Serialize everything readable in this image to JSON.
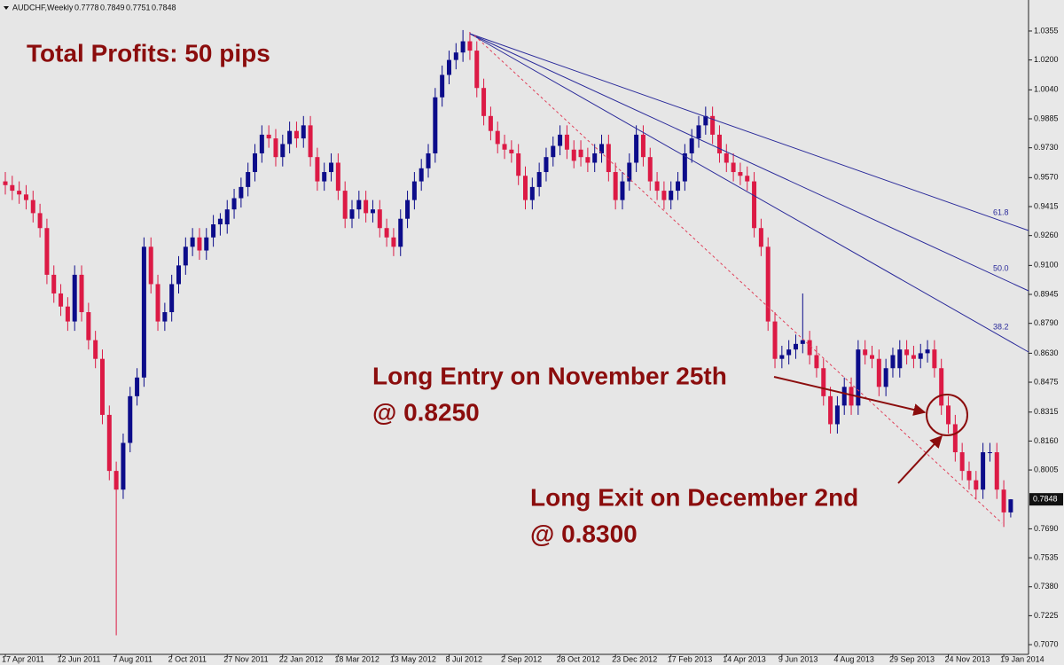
{
  "chart_data": {
    "type": "candlestick",
    "symbol": "AUDCHF,Weekly",
    "annotations": [
      "Total Profits: 50 pips",
      "Long Entry on November 25th",
      "@ 0.8250",
      "Long Exit on December 2nd",
      "@ 0.8300"
    ],
    "fan_levels": [
      61.8,
      {
        "value": 50,
        "label": "50.0"
      },
      38.2
    ],
    "up_color": "#0c0c8a",
    "down_color": "#dc1a45",
    "ylim": [
      0.7018,
      1.0521
    ],
    "yticks": [
      1.0355,
      {
        "value": 1.02,
        "label": "1.0200"
      },
      {
        "value": 1.004,
        "label": "1.0040"
      },
      0.9885,
      {
        "value": 0.973,
        "label": "0.9730"
      },
      {
        "value": 0.957,
        "label": "0.9570"
      },
      0.9415,
      {
        "value": 0.926,
        "label": "0.9260"
      },
      {
        "value": 0.91,
        "label": "0.9100"
      },
      0.8945,
      {
        "value": 0.879,
        "label": "0.8790"
      },
      {
        "value": 0.863,
        "label": "0.8630"
      },
      0.8475,
      0.8315,
      {
        "value": 0.816,
        "label": "0.8160"
      },
      0.8005,
      {
        "value": 0.769,
        "label": "0.7690"
      },
      0.7535,
      {
        "value": 0.738,
        "label": "0.7380"
      },
      0.7225,
      {
        "value": 0.707,
        "label": "0.7070"
      }
    ],
    "categories": [
      "17 Apr 2011",
      null,
      null,
      null,
      null,
      null,
      null,
      null,
      "12 Jun 2011",
      null,
      null,
      null,
      null,
      null,
      null,
      null,
      "7 Aug 2011",
      null,
      null,
      null,
      null,
      null,
      null,
      null,
      "2 Oct 2011",
      null,
      null,
      null,
      null,
      null,
      null,
      null,
      "27 Nov 2011",
      null,
      null,
      null,
      null,
      null,
      null,
      null,
      "22 Jan 2012",
      null,
      null,
      null,
      null,
      null,
      null,
      null,
      "18 Mar 2012",
      null,
      null,
      null,
      null,
      null,
      null,
      null,
      "13 May 2012",
      null,
      null,
      null,
      null,
      null,
      null,
      null,
      "8 Jul 2012",
      null,
      null,
      null,
      null,
      null,
      null,
      null,
      "2 Sep 2012",
      null,
      null,
      null,
      null,
      null,
      null,
      null,
      "28 Oct 2012",
      null,
      null,
      null,
      null,
      null,
      null,
      null,
      "23 Dec 2012",
      null,
      null,
      null,
      null,
      null,
      null,
      null,
      "17 Feb 2013",
      null,
      null,
      null,
      null,
      null,
      null,
      null,
      "14 Apr 2013",
      null,
      null,
      null,
      null,
      null,
      null,
      null,
      "9 Jun 2013",
      null,
      null,
      null,
      null,
      null,
      null,
      null,
      "4 Aug 2013",
      null,
      null,
      null,
      null,
      null,
      null,
      null,
      "29 Sep 2013",
      null,
      null,
      null,
      null,
      null,
      null,
      null,
      "24 Nov 2013",
      null,
      null,
      null,
      null,
      null,
      null,
      null,
      "19 Jan 2014",
      null
    ],
    "open": [
      0.955,
      0.953,
      0.95,
      0.948,
      0.945,
      0.938,
      0.93,
      0.905,
      0.895,
      0.888,
      0.88,
      0.905,
      0.885,
      0.87,
      0.86,
      0.83,
      0.8,
      0.79,
      0.815,
      0.84,
      0.85,
      0.92,
      0.9,
      0.88,
      0.885,
      0.9,
      0.91,
      0.92,
      0.925,
      0.918,
      0.925,
      0.932,
      0.932,
      0.94,
      0.946,
      0.952,
      0.96,
      0.97,
      0.98,
      0.978,
      0.968,
      0.975,
      0.982,
      0.978,
      0.985,
      0.968,
      0.955,
      0.96,
      0.965,
      0.95,
      0.935,
      0.94,
      0.945,
      0.938,
      0.94,
      0.93,
      0.925,
      0.92,
      0.935,
      0.945,
      0.955,
      0.962,
      0.97,
      1.0,
      1.012,
      1.02,
      1.024,
      1.03,
      1.025,
      1.005,
      0.99,
      0.982,
      0.975,
      0.972,
      0.97,
      0.958,
      0.945,
      0.952,
      0.96,
      0.968,
      0.974,
      0.98,
      0.972,
      0.972,
      0.968,
      0.965,
      0.97,
      0.975,
      0.96,
      0.945,
      0.955,
      0.965,
      0.98,
      0.968,
      0.955,
      0.95,
      0.945,
      0.95,
      0.955,
      0.97,
      0.978,
      0.985,
      0.99,
      0.98,
      0.97,
      0.965,
      0.96,
      0.958,
      0.955,
      0.93,
      0.92,
      0.88,
      0.86,
      0.862,
      0.865,
      0.868,
      0.87,
      0.862,
      0.855,
      0.84,
      0.825,
      0.835,
      0.845,
      0.835,
      0.865,
      0.862,
      0.86,
      0.845,
      0.855,
      0.855,
      0.865,
      0.862,
      0.86,
      0.863,
      0.865,
      0.855,
      0.835,
      0.825,
      0.81,
      0.8,
      0.795,
      0.79,
      0.81,
      0.81,
      0.79,
      0.7778
    ],
    "high": [
      0.96,
      0.958,
      0.955,
      0.953,
      0.95,
      0.943,
      0.935,
      0.91,
      0.9,
      0.893,
      0.91,
      0.91,
      0.89,
      0.875,
      0.865,
      0.835,
      0.805,
      0.82,
      0.845,
      0.855,
      0.925,
      0.925,
      0.905,
      0.89,
      0.905,
      0.915,
      0.925,
      0.93,
      0.93,
      0.93,
      0.937,
      0.938,
      0.945,
      0.951,
      0.957,
      0.965,
      0.975,
      0.985,
      0.985,
      0.983,
      0.98,
      0.987,
      0.987,
      0.99,
      0.99,
      0.973,
      0.965,
      0.97,
      0.97,
      0.955,
      0.945,
      0.95,
      0.95,
      0.945,
      0.945,
      0.935,
      0.93,
      0.94,
      0.95,
      0.96,
      0.967,
      0.975,
      1.005,
      1.017,
      1.025,
      1.029,
      1.036,
      1.035,
      1.03,
      1.01,
      0.995,
      0.987,
      0.98,
      0.977,
      0.975,
      0.963,
      0.957,
      0.965,
      0.973,
      0.979,
      0.985,
      0.985,
      0.977,
      0.977,
      0.973,
      0.975,
      0.98,
      0.98,
      0.965,
      0.96,
      0.97,
      0.985,
      0.985,
      0.973,
      0.96,
      0.955,
      0.955,
      0.96,
      0.975,
      0.983,
      0.99,
      0.995,
      0.995,
      0.985,
      0.975,
      0.97,
      0.965,
      0.963,
      0.96,
      0.935,
      0.925,
      0.885,
      0.867,
      0.87,
      0.873,
      0.895,
      0.875,
      0.867,
      0.86,
      0.845,
      0.84,
      0.85,
      0.85,
      0.87,
      0.87,
      0.867,
      0.865,
      0.86,
      0.866,
      0.87,
      0.87,
      0.867,
      0.868,
      0.87,
      0.87,
      0.86,
      0.84,
      0.83,
      0.815,
      0.805,
      0.8,
      0.815,
      0.815,
      0.815,
      0.795,
      0.7849
    ],
    "low": [
      0.948,
      0.945,
      0.943,
      0.94,
      0.933,
      0.925,
      0.9,
      0.89,
      0.883,
      0.875,
      0.875,
      0.88,
      0.865,
      0.855,
      0.825,
      0.795,
      0.712,
      0.785,
      0.81,
      0.835,
      0.845,
      0.895,
      0.875,
      0.875,
      0.88,
      0.895,
      0.905,
      0.915,
      0.913,
      0.913,
      0.92,
      0.926,
      0.927,
      0.935,
      0.941,
      0.947,
      0.955,
      0.965,
      0.973,
      0.963,
      0.963,
      0.97,
      0.973,
      0.973,
      0.963,
      0.95,
      0.95,
      0.955,
      0.945,
      0.93,
      0.93,
      0.935,
      0.933,
      0.933,
      0.925,
      0.92,
      0.915,
      0.915,
      0.93,
      0.94,
      0.95,
      0.957,
      0.965,
      0.995,
      1.007,
      1.015,
      1.019,
      1.02,
      1.0,
      0.985,
      0.977,
      0.97,
      0.967,
      0.965,
      0.953,
      0.94,
      0.94,
      0.947,
      0.955,
      0.963,
      0.969,
      0.967,
      0.962,
      0.963,
      0.96,
      0.96,
      0.965,
      0.955,
      0.94,
      0.94,
      0.95,
      0.96,
      0.963,
      0.95,
      0.945,
      0.94,
      0.94,
      0.945,
      0.95,
      0.965,
      0.973,
      0.98,
      0.975,
      0.965,
      0.96,
      0.955,
      0.953,
      0.95,
      0.925,
      0.915,
      0.875,
      0.855,
      0.855,
      0.857,
      0.86,
      0.863,
      0.857,
      0.85,
      0.835,
      0.82,
      0.82,
      0.83,
      0.83,
      0.83,
      0.857,
      0.855,
      0.84,
      0.84,
      0.85,
      0.85,
      0.857,
      0.855,
      0.855,
      0.858,
      0.85,
      0.83,
      0.82,
      0.805,
      0.795,
      0.79,
      0.785,
      0.785,
      0.805,
      0.785,
      0.77,
      0.7751
    ],
    "close": [
      0.953,
      0.95,
      0.948,
      0.945,
      0.938,
      0.93,
      0.905,
      0.895,
      0.888,
      0.88,
      0.905,
      0.885,
      0.87,
      0.86,
      0.83,
      0.8,
      0.79,
      0.815,
      0.84,
      0.85,
      0.92,
      0.9,
      0.88,
      0.885,
      0.9,
      0.91,
      0.92,
      0.925,
      0.918,
      0.925,
      0.932,
      0.935,
      0.94,
      0.946,
      0.952,
      0.96,
      0.97,
      0.98,
      0.978,
      0.968,
      0.975,
      0.982,
      0.978,
      0.985,
      0.968,
      0.955,
      0.96,
      0.965,
      0.95,
      0.935,
      0.94,
      0.945,
      0.938,
      0.94,
      0.93,
      0.925,
      0.92,
      0.935,
      0.945,
      0.955,
      0.962,
      0.97,
      1.0,
      1.012,
      1.02,
      1.024,
      1.03,
      1.025,
      1.005,
      0.99,
      0.982,
      0.975,
      0.972,
      0.97,
      0.958,
      0.945,
      0.952,
      0.96,
      0.968,
      0.974,
      0.98,
      0.972,
      0.966,
      0.968,
      0.965,
      0.97,
      0.975,
      0.96,
      0.945,
      0.955,
      0.965,
      0.98,
      0.968,
      0.955,
      0.95,
      0.945,
      0.95,
      0.955,
      0.97,
      0.978,
      0.985,
      0.99,
      0.98,
      0.97,
      0.965,
      0.96,
      0.958,
      0.955,
      0.93,
      0.92,
      0.88,
      0.86,
      0.862,
      0.865,
      0.868,
      0.87,
      0.862,
      0.855,
      0.84,
      0.825,
      0.835,
      0.845,
      0.835,
      0.865,
      0.862,
      0.86,
      0.845,
      0.855,
      0.862,
      0.865,
      0.862,
      0.86,
      0.863,
      0.865,
      0.855,
      0.835,
      0.825,
      0.81,
      0.8,
      0.795,
      0.79,
      0.81,
      0.81,
      0.79,
      0.7778,
      0.7848
    ]
  }
}
